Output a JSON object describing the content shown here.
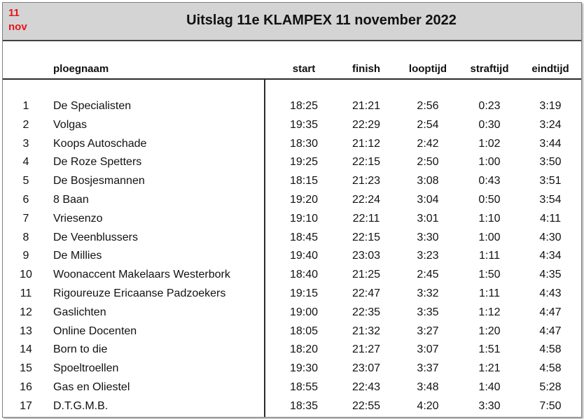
{
  "header": {
    "day": "11",
    "month": "nov",
    "title": "Uitslag 11e KLAMPEX  11 november 2022"
  },
  "columns": {
    "name": "ploegnaam",
    "start": "start",
    "finish": "finish",
    "looptijd": "looptijd",
    "straftijd": "straftijd",
    "eindtijd": "eindtijd"
  },
  "rows": [
    {
      "rank": "1",
      "name": "De Specialisten",
      "start": "18:25",
      "finish": "21:21",
      "looptijd": "2:56",
      "straftijd": "0:23",
      "eindtijd": "3:19"
    },
    {
      "rank": "2",
      "name": "Volgas",
      "start": "19:35",
      "finish": "22:29",
      "looptijd": "2:54",
      "straftijd": "0:30",
      "eindtijd": "3:24"
    },
    {
      "rank": "3",
      "name": "Koops Autoschade",
      "start": "18:30",
      "finish": "21:12",
      "looptijd": "2:42",
      "straftijd": "1:02",
      "eindtijd": "3:44"
    },
    {
      "rank": "4",
      "name": "De Roze Spetters",
      "start": "19:25",
      "finish": "22:15",
      "looptijd": "2:50",
      "straftijd": "1:00",
      "eindtijd": "3:50"
    },
    {
      "rank": "5",
      "name": "De Bosjesmannen",
      "start": "18:15",
      "finish": "21:23",
      "looptijd": "3:08",
      "straftijd": "0:43",
      "eindtijd": "3:51"
    },
    {
      "rank": "6",
      "name": "8 Baan",
      "start": "19:20",
      "finish": "22:24",
      "looptijd": "3:04",
      "straftijd": "0:50",
      "eindtijd": "3:54"
    },
    {
      "rank": "7",
      "name": "Vriesenzo",
      "start": "19:10",
      "finish": "22:11",
      "looptijd": "3:01",
      "straftijd": "1:10",
      "eindtijd": "4:11"
    },
    {
      "rank": "8",
      "name": "De Veenblussers",
      "start": "18:45",
      "finish": "22:15",
      "looptijd": "3:30",
      "straftijd": "1:00",
      "eindtijd": "4:30"
    },
    {
      "rank": "9",
      "name": "De Millies",
      "start": "19:40",
      "finish": "23:03",
      "looptijd": "3:23",
      "straftijd": "1:11",
      "eindtijd": "4:34"
    },
    {
      "rank": "10",
      "name": "Woonaccent Makelaars Westerbork",
      "start": "18:40",
      "finish": "21:25",
      "looptijd": "2:45",
      "straftijd": "1:50",
      "eindtijd": "4:35"
    },
    {
      "rank": "11",
      "name": "Rigoureuze Ericaanse Padzoekers",
      "start": "19:15",
      "finish": "22:47",
      "looptijd": "3:32",
      "straftijd": "1:11",
      "eindtijd": "4:43"
    },
    {
      "rank": "12",
      "name": "Gaslichten",
      "start": "19:00",
      "finish": "22:35",
      "looptijd": "3:35",
      "straftijd": "1:12",
      "eindtijd": "4:47"
    },
    {
      "rank": "13",
      "name": "Online Docenten",
      "start": "18:05",
      "finish": "21:32",
      "looptijd": "3:27",
      "straftijd": "1:20",
      "eindtijd": "4:47"
    },
    {
      "rank": "14",
      "name": "Born to die",
      "start": "18:20",
      "finish": "21:27",
      "looptijd": "3:07",
      "straftijd": "1:51",
      "eindtijd": "4:58"
    },
    {
      "rank": "15",
      "name": "Spoeltroellen",
      "start": "19:30",
      "finish": "23:07",
      "looptijd": "3:37",
      "straftijd": "1:21",
      "eindtijd": "4:58"
    },
    {
      "rank": "16",
      "name": "Gas en Oliestel",
      "start": "18:55",
      "finish": "22:43",
      "looptijd": "3:48",
      "straftijd": "1:40",
      "eindtijd": "5:28"
    },
    {
      "rank": "17",
      "name": "D.T.G.M.B.",
      "start": "18:35",
      "finish": "22:55",
      "looptijd": "4:20",
      "straftijd": "3:30",
      "eindtijd": "7:50"
    }
  ],
  "colors": {
    "header_bg": "#d4d4d4",
    "date_badge": "#e8141c",
    "rule": "#2b2b2b"
  }
}
